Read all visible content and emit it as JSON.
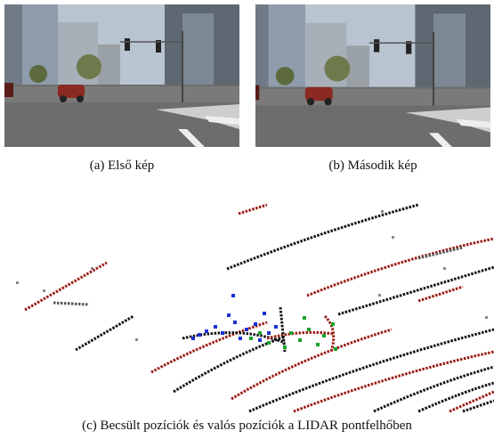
{
  "figures": [
    {
      "caption": "(a) Első kép"
    },
    {
      "caption": "(b) Második kép"
    }
  ],
  "pointcloud": {
    "caption": "(c) Becsült pozíciók és valós pozíciók a LIDAR pontfelhőben"
  }
}
